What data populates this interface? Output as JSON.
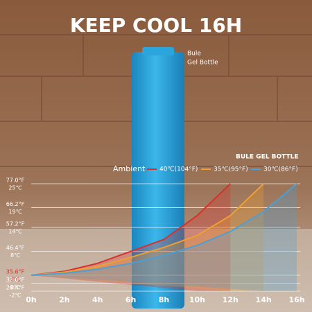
{
  "chart_data": {
    "type": "line",
    "title": "KEEP COOL 16H",
    "annotations": [
      "Bule",
      "Gel Bottle"
    ],
    "legend_title": "BULE GEL BOTTLE",
    "legend_label": "Ambient",
    "categories": [
      "0h",
      "2h",
      "4h",
      "6h",
      "8h",
      "10h",
      "12h",
      "14h",
      "16h"
    ],
    "series": [
      {
        "name": "40℃(104°F)",
        "color": "#d9302c",
        "values": [
          2,
          3,
          5,
          8,
          11,
          17,
          25,
          null,
          null
        ]
      },
      {
        "name": "35℃(95°F)",
        "color": "#f0a030",
        "values": [
          2,
          2.8,
          4.2,
          6.5,
          9,
          12,
          17,
          25,
          null
        ]
      },
      {
        "name": "30℃(86°F)",
        "color": "#4a9fd8",
        "values": [
          2,
          2.5,
          3.5,
          5,
          7,
          9.5,
          13,
          18,
          25
        ]
      }
    ],
    "ylim": [
      -2,
      25
    ],
    "yticks": [
      {
        "value": -2,
        "label": "-2℃"
      },
      {
        "value": 0,
        "label": "0℃"
      },
      {
        "value": 2,
        "label": "2℃"
      },
      {
        "value": 8,
        "label": "8℃"
      },
      {
        "value": 14,
        "label": "14℃"
      },
      {
        "value": 19,
        "label": "19℃"
      },
      {
        "value": 25,
        "label": "25℃"
      }
    ],
    "y2lim": [
      28.4,
      77
    ],
    "y2ticks": [
      {
        "value": 28.4,
        "label": "28.4°F"
      },
      {
        "value": 32,
        "label": "32.0°F"
      },
      {
        "value": 35.6,
        "label": "35.6°F"
      },
      {
        "value": 46.4,
        "label": "46.4°F"
      },
      {
        "value": 57.2,
        "label": "57.2°F"
      },
      {
        "value": 66.2,
        "label": "66.2°F"
      },
      {
        "value": 77,
        "label": "77.0°F"
      }
    ],
    "grid": true
  }
}
